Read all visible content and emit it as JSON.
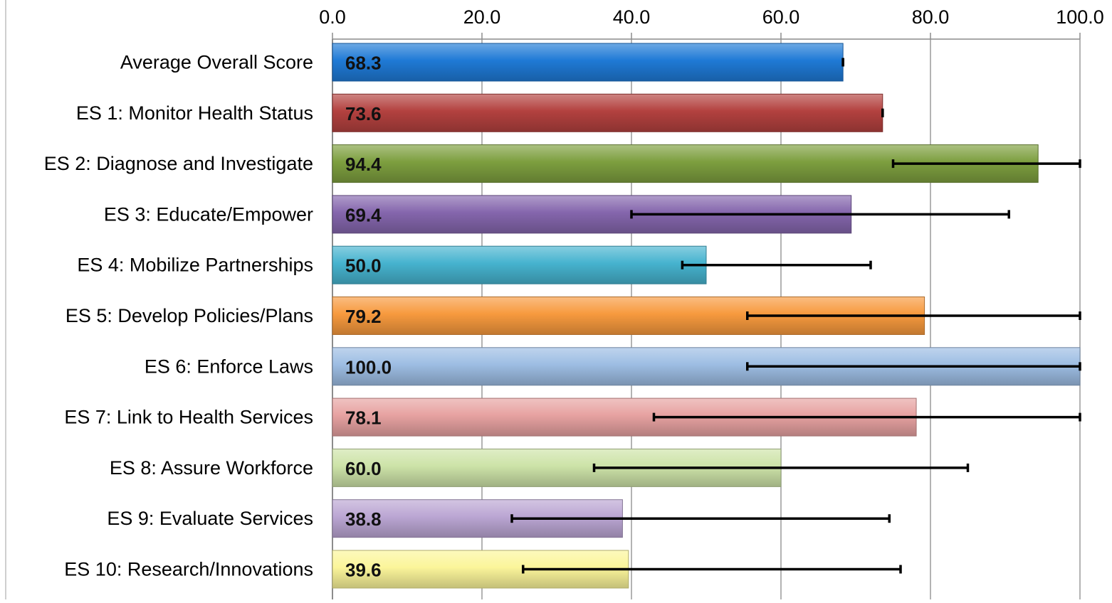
{
  "chart_data": {
    "type": "bar",
    "orientation": "horizontal",
    "title": "",
    "xlabel": "",
    "ylabel": "",
    "xlim": [
      0,
      100
    ],
    "x_ticks": [
      "0.0",
      "20.0",
      "40.0",
      "60.0",
      "80.0",
      "100.0"
    ],
    "x_axis_position": "top",
    "grid": true,
    "legend": "none",
    "categories": [
      "Average Overall Score",
      "ES 1: Monitor Health Status",
      "ES 2: Diagnose and Investigate",
      "ES 3: Educate/Empower",
      "ES 4: Mobilize Partnerships",
      "ES 5: Develop Policies/Plans",
      "ES 6: Enforce Laws",
      "ES 7: Link to Health Services",
      "ES 8: Assure Workforce",
      "ES 9: Evaluate Services",
      "ES 10: Research/Innovations"
    ],
    "values": [
      68.3,
      73.6,
      94.4,
      69.4,
      50.0,
      79.2,
      100.0,
      78.1,
      60.0,
      38.8,
      39.6
    ],
    "value_labels": [
      "68.3",
      "73.6",
      "94.4",
      "69.4",
      "50.0",
      "79.2",
      "100.0",
      "78.1",
      "60.0",
      "38.8",
      "39.6"
    ],
    "error_low": [
      68.3,
      73.6,
      75.0,
      40.0,
      46.8,
      55.5,
      55.5,
      43.0,
      35.0,
      24.0,
      25.5
    ],
    "error_high": [
      68.3,
      73.6,
      100.0,
      90.5,
      72.0,
      100.0,
      100.0,
      100.0,
      85.0,
      74.5,
      76.0
    ],
    "colors": [
      "#1f7ad6",
      "#b3413f",
      "#7d9f3f",
      "#8566ad",
      "#46b3cf",
      "#f79a3e",
      "#9dbde3",
      "#e7a2a1",
      "#cde3a8",
      "#bba6d3",
      "#fbf59a"
    ]
  }
}
